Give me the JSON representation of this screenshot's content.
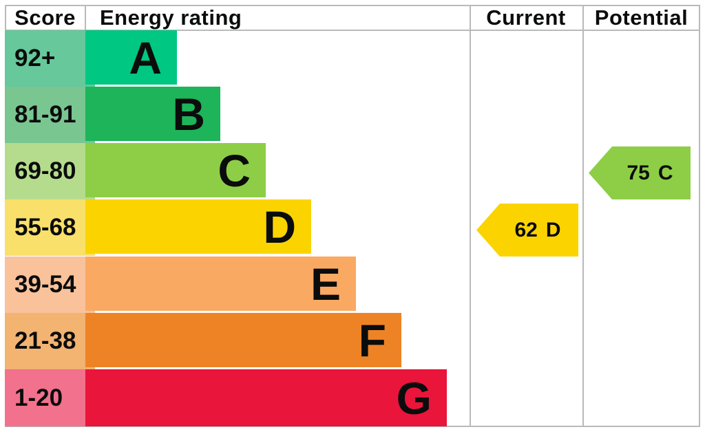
{
  "header": {
    "score": "Score",
    "energy_rating": "Energy rating",
    "current": "Current",
    "potential": "Potential"
  },
  "bands": [
    {
      "letter": "A",
      "score": "92+",
      "bar_color": "#00c781",
      "score_bg": "#66c89b"
    },
    {
      "letter": "B",
      "score": "81-91",
      "bar_color": "#1db45a",
      "score_bg": "#79c691"
    },
    {
      "letter": "C",
      "score": "69-80",
      "bar_color": "#8dce46",
      "score_bg": "#b5dc8d"
    },
    {
      "letter": "D",
      "score": "55-68",
      "bar_color": "#fbd400",
      "score_bg": "#f8e06a"
    },
    {
      "letter": "E",
      "score": "39-54",
      "bar_color": "#faa963",
      "score_bg": "#f9c29b"
    },
    {
      "letter": "F",
      "score": "21-38",
      "bar_color": "#ee8326",
      "score_bg": "#f3b371"
    },
    {
      "letter": "G",
      "score": "1-20",
      "bar_color": "#e9153b",
      "score_bg": "#f2718c"
    }
  ],
  "current": {
    "value": "62",
    "band": "D",
    "color": "#fbd400"
  },
  "potential": {
    "value": "75",
    "band": "C",
    "color": "#8dce46"
  },
  "border_color": "#b9b9b9",
  "chart_data": {
    "type": "bar",
    "title": "Energy rating",
    "columns": [
      "Score",
      "Energy rating",
      "Current",
      "Potential"
    ],
    "categories": [
      "A",
      "B",
      "C",
      "D",
      "E",
      "F",
      "G"
    ],
    "score_ranges": [
      "92+",
      "81-91",
      "69-80",
      "55-68",
      "39-54",
      "21-38",
      "1-20"
    ],
    "values": [
      1,
      2,
      3,
      4,
      5,
      6,
      7
    ],
    "values_note": "relative bar lengths, A shortest to G longest",
    "band_colors": [
      "#00c781",
      "#1db45a",
      "#8dce46",
      "#fbd400",
      "#faa963",
      "#ee8326",
      "#e9153b"
    ],
    "markers": [
      {
        "label": "Current",
        "value": 62,
        "band": "D",
        "color": "#fbd400"
      },
      {
        "label": "Potential",
        "value": 75,
        "band": "C",
        "color": "#8dce46"
      }
    ],
    "legend_position": "none",
    "grid": "table lines between Score, Energy rating, Current and Potential columns"
  }
}
